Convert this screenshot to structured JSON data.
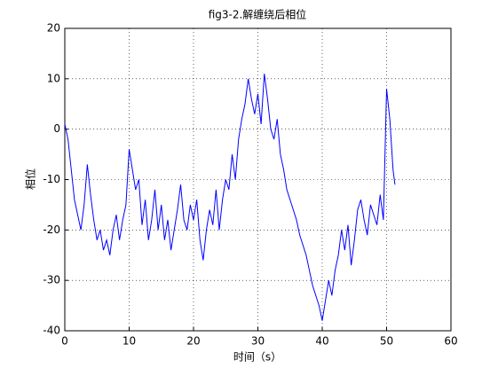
{
  "chart_data": {
    "type": "line",
    "title": "fig3-2.解缠绕后相位",
    "x_label": "时间（s）",
    "y_label": "相位",
    "x": [
      0,
      0.5,
      1,
      1.5,
      2,
      2.5,
      3,
      3.5,
      4,
      4.5,
      5,
      5.5,
      6,
      6.5,
      7,
      7.5,
      8,
      8.5,
      9,
      9.5,
      10,
      10.5,
      11,
      11.5,
      12,
      12.5,
      13,
      13.5,
      14,
      14.5,
      15,
      15.5,
      16,
      16.5,
      17,
      17.5,
      18,
      18.5,
      19,
      19.5,
      20,
      20.5,
      21,
      21.5,
      22,
      22.5,
      23,
      23.5,
      24,
      24.5,
      25,
      25.5,
      26,
      26.5,
      27,
      27.5,
      28,
      28.5,
      29,
      29.5,
      30,
      30.5,
      31,
      31.5,
      32,
      32.5,
      33,
      33.5,
      34,
      34.5,
      35,
      35.5,
      36,
      36.5,
      37,
      37.5,
      38,
      38.5,
      39,
      39.5,
      40,
      40.5,
      41,
      41.5,
      42,
      42.5,
      43,
      43.5,
      44,
      44.5,
      45,
      45.5,
      46,
      46.5,
      47,
      47.5,
      48,
      48.5,
      49,
      49.5,
      50,
      50.5,
      51,
      51.3
    ],
    "series": [
      {
        "name": "相位",
        "color": "#0000ff",
        "values": [
          1,
          -2,
          -8,
          -14,
          -17,
          -20,
          -15,
          -7,
          -13,
          -18,
          -22,
          -20,
          -24,
          -22,
          -25,
          -20,
          -17,
          -22,
          -18,
          -15,
          -4,
          -8,
          -12,
          -10,
          -19,
          -14,
          -22,
          -18,
          -12,
          -20,
          -15,
          -22,
          -18,
          -24,
          -20,
          -16,
          -11,
          -18,
          -20,
          -15,
          -18,
          -14,
          -22,
          -26,
          -20,
          -16,
          -19,
          -12,
          -20,
          -14,
          -10,
          -12,
          -5,
          -10,
          -2,
          2,
          5,
          10,
          6,
          3,
          7,
          1,
          11,
          6,
          0,
          -2,
          2,
          -5,
          -8,
          -12,
          -14,
          -16,
          -18,
          -21,
          -23,
          -25,
          -28,
          -31,
          -33,
          -35,
          -38,
          -34,
          -30,
          -33,
          -28,
          -25,
          -20,
          -24,
          -19,
          -27,
          -22,
          -16,
          -14,
          -18,
          -21,
          -15,
          -17,
          -19,
          -13,
          -18,
          8,
          2,
          -8,
          -11
        ]
      }
    ],
    "xlim": [
      0,
      60
    ],
    "ylim": [
      -40,
      20
    ],
    "xticks": [
      0,
      10,
      20,
      30,
      40,
      50,
      60
    ],
    "yticks": [
      -40,
      -30,
      -20,
      -10,
      0,
      10,
      20
    ],
    "grid": true
  }
}
